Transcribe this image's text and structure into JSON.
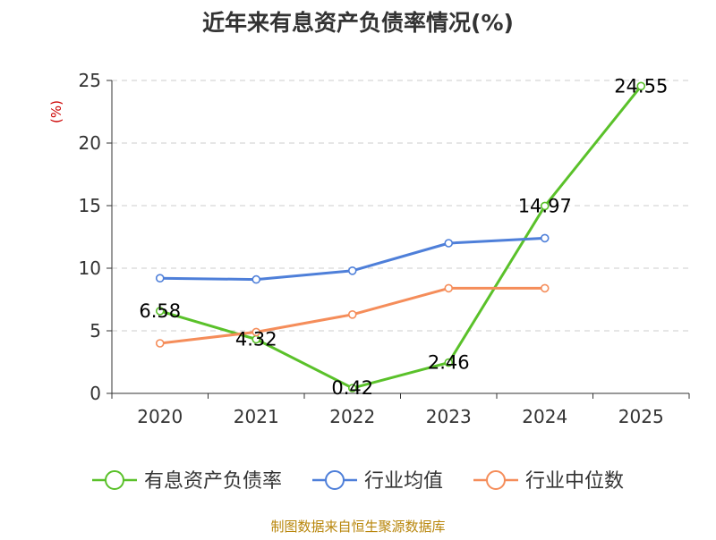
{
  "chart_data": {
    "type": "line",
    "title": "近年来有息资产负债率情况(%)",
    "ylabel": "(%)",
    "xlabel": "",
    "categories": [
      "2020",
      "2021",
      "2022",
      "2023",
      "2024",
      "2025"
    ],
    "ylim": [
      0,
      25
    ],
    "yticks": [
      0,
      5,
      10,
      15,
      20,
      25
    ],
    "grid": true,
    "legend_position": "bottom",
    "series": [
      {
        "name": "有息资产负债率",
        "color": "#5ac12a",
        "show_labels": true,
        "values": [
          6.58,
          4.32,
          0.42,
          2.46,
          14.97,
          24.55
        ],
        "labels": [
          "6.58",
          "4.32",
          "0.42",
          "2.46",
          "14.97",
          "24.55"
        ]
      },
      {
        "name": "行业均值",
        "color": "#4e7fd9",
        "show_labels": false,
        "values": [
          9.2,
          9.1,
          9.8,
          12.0,
          12.4,
          null
        ]
      },
      {
        "name": "行业中位数",
        "color": "#f58d5a",
        "show_labels": false,
        "values": [
          4.0,
          4.9,
          6.3,
          8.4,
          8.4,
          null
        ]
      }
    ]
  },
  "source": "制图数据来自恒生聚源数据库",
  "colors": {
    "title": "#333333",
    "ylabel": "#cc0000",
    "source": "#b8860b",
    "axis": "#333333",
    "grid": "#cccccc"
  }
}
